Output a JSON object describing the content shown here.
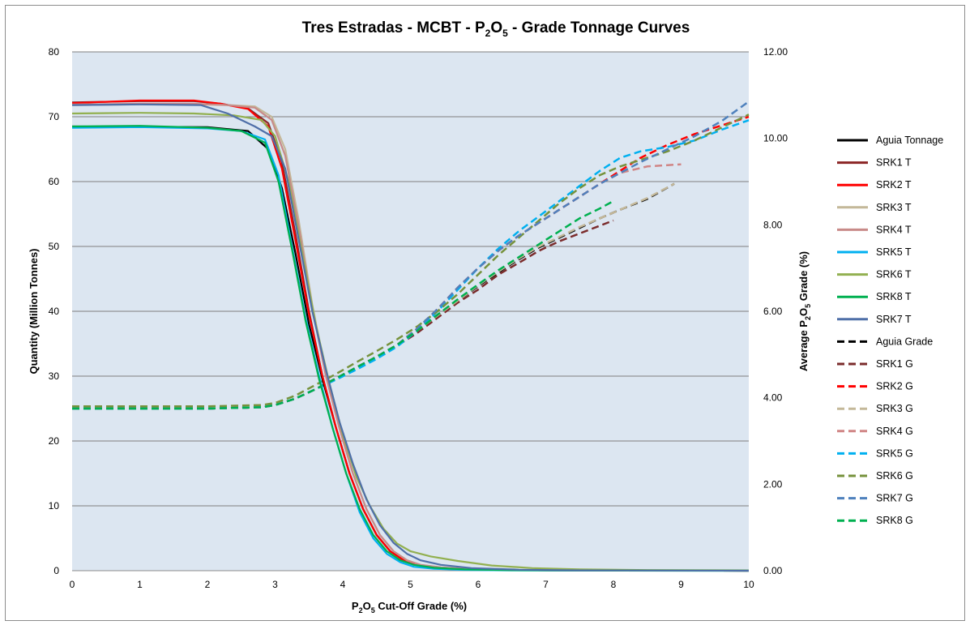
{
  "chart_data": {
    "type": "line",
    "title": {
      "prefix": "Tres Estradas - MCBT - P",
      "sub1": "2",
      "mid": "O",
      "sub2": "5",
      "suffix": " - Grade Tonnage Curves"
    },
    "xlabel": {
      "prefix": "P",
      "sub1": "2",
      "mid": "O",
      "sub2": "5",
      "suffix": " Cut-Off Grade (%)"
    },
    "ylabel": "Quantity (Million Tonnes)",
    "y2label": {
      "prefix": "Average P",
      "sub1": "2",
      "mid": "O",
      "sub2": "5",
      "suffix": " Grade (%)"
    },
    "xlim": [
      0,
      10
    ],
    "ylim": [
      0,
      80
    ],
    "y2lim": [
      0,
      12
    ],
    "x_ticks": [
      "0",
      "1",
      "2",
      "3",
      "4",
      "5",
      "6",
      "7",
      "8",
      "9",
      "10"
    ],
    "y_ticks": [
      "0",
      "10",
      "20",
      "30",
      "40",
      "50",
      "60",
      "70",
      "80"
    ],
    "y2_ticks": [
      "0.00",
      "2.00",
      "4.00",
      "6.00",
      "8.00",
      "10.00",
      "12.00"
    ],
    "grid": "horizontal",
    "legend_position": "right",
    "plot_background": "#dce6f1",
    "tonnage_series": [
      {
        "name": "Aguia Tonnage",
        "color": "#000000",
        "x": [
          0,
          2,
          2.6,
          2.9,
          3.1,
          3.3,
          3.5,
          3.7,
          3.9,
          4.1,
          4.3,
          4.5,
          4.7,
          4.9,
          5.1,
          5.4,
          5.8,
          6.5,
          7.5,
          10
        ],
        "y": [
          68.5,
          68.4,
          67.8,
          65,
          59,
          49,
          38,
          29.5,
          22,
          15,
          9.5,
          5.5,
          3,
          1.6,
          0.9,
          0.5,
          0.25,
          0.1,
          0.05,
          0
        ]
      },
      {
        "name": "SRK1 T",
        "color": "#8b2525",
        "x": [
          0,
          1,
          1.8,
          2.2,
          2.6,
          2.9,
          3.1,
          3.3,
          3.5,
          3.7,
          3.9,
          4.1,
          4.3,
          4.5,
          4.7,
          4.9,
          5.1,
          5.4,
          5.8,
          6.5,
          7.5,
          10
        ],
        "y": [
          72.2,
          72.4,
          72.4,
          72,
          71.3,
          69,
          63,
          52,
          40,
          30,
          22,
          15,
          9.5,
          5.5,
          3,
          1.6,
          0.9,
          0.5,
          0.25,
          0.1,
          0.05,
          0
        ]
      },
      {
        "name": "SRK2 T",
        "color": "#ff0000",
        "x": [
          0,
          1,
          1.8,
          2.2,
          2.6,
          2.9,
          3.1,
          3.3,
          3.5,
          3.7,
          3.9,
          4.1,
          4.3,
          4.5,
          4.7,
          4.9,
          5.1,
          5.4,
          5.8,
          6.5,
          7.5,
          10
        ],
        "y": [
          72.1,
          72.5,
          72.5,
          72,
          71.2,
          68.5,
          62,
          51,
          39.5,
          30,
          22,
          15,
          9.5,
          5.5,
          3,
          1.6,
          0.9,
          0.5,
          0.25,
          0.1,
          0.05,
          0
        ]
      },
      {
        "name": "SRK3 T",
        "color": "#c4b899",
        "x": [
          0,
          1,
          1.8,
          2.3,
          2.7,
          2.95,
          3.15,
          3.35,
          3.55,
          3.75,
          3.95,
          4.15,
          4.35,
          4.55,
          4.75,
          4.95,
          5.15,
          5.45,
          5.85,
          6.5,
          7.5,
          10
        ],
        "y": [
          71.8,
          71.9,
          71.9,
          71.8,
          71.6,
          70,
          65,
          54,
          41,
          30.5,
          22,
          15,
          9.5,
          5.5,
          3,
          1.6,
          0.9,
          0.5,
          0.25,
          0.1,
          0.05,
          0
        ]
      },
      {
        "name": "SRK4 T",
        "color": "#c88a88",
        "x": [
          0,
          1,
          1.8,
          2.3,
          2.7,
          2.95,
          3.15,
          3.35,
          3.55,
          3.75,
          3.95,
          4.15,
          4.35,
          4.55,
          4.75,
          4.95,
          5.15,
          5.45,
          5.85,
          6.5,
          7.5,
          10
        ],
        "y": [
          71.9,
          72,
          72,
          71.8,
          71.4,
          69.5,
          64,
          53,
          40.5,
          30,
          22,
          15,
          9.5,
          5.5,
          3,
          1.6,
          0.9,
          0.5,
          0.25,
          0.1,
          0.05,
          0
        ]
      },
      {
        "name": "SRK5 T",
        "color": "#00b0f0",
        "x": [
          0,
          1,
          2,
          2.5,
          2.85,
          3.05,
          3.25,
          3.45,
          3.65,
          3.85,
          4.05,
          4.25,
          4.45,
          4.65,
          4.85,
          5.05,
          5.35,
          5.8,
          6.5,
          7.5,
          10
        ],
        "y": [
          68.3,
          68.4,
          68.2,
          67.8,
          66.5,
          61,
          50,
          39,
          30,
          22,
          15,
          9,
          5,
          2.6,
          1.3,
          0.6,
          0.3,
          0.12,
          0.05,
          0.02,
          0
        ]
      },
      {
        "name": "SRK6 T",
        "color": "#92b050",
        "x": [
          0,
          1,
          1.8,
          2.4,
          2.8,
          3.0,
          3.2,
          3.4,
          3.6,
          3.8,
          4.0,
          4.2,
          4.4,
          4.6,
          4.8,
          5.0,
          5.3,
          5.7,
          6.2,
          6.8,
          7.5,
          8.5,
          10
        ],
        "y": [
          70.5,
          70.6,
          70.5,
          70.2,
          69.5,
          67,
          60,
          49,
          38,
          29,
          21,
          14.5,
          10,
          6.5,
          4.2,
          3,
          2.2,
          1.5,
          0.8,
          0.4,
          0.2,
          0.1,
          0.05
        ]
      },
      {
        "name": "SRK8 T",
        "color": "#00b050",
        "x": [
          0,
          1,
          2,
          2.5,
          2.85,
          3.05,
          3.25,
          3.45,
          3.65,
          3.85,
          4.05,
          4.25,
          4.45,
          4.65,
          4.85,
          5.05,
          5.35,
          5.8,
          6.5,
          7.5,
          10
        ],
        "y": [
          68.5,
          68.6,
          68.3,
          67.8,
          66,
          60,
          49.5,
          38.5,
          29.5,
          22,
          15,
          9.5,
          5.5,
          3,
          1.6,
          0.9,
          0.45,
          0.2,
          0.08,
          0.03,
          0
        ]
      },
      {
        "name": "SRK7 T",
        "color": "#4f6fa8",
        "x": [
          0,
          1,
          1.9,
          2.3,
          2.7,
          2.95,
          3.15,
          3.35,
          3.55,
          3.75,
          3.95,
          4.15,
          4.35,
          4.55,
          4.75,
          4.95,
          5.15,
          5.45,
          5.9,
          6.6,
          7.5,
          10
        ],
        "y": [
          71.8,
          71.9,
          71.8,
          70.5,
          68.5,
          67,
          62,
          51,
          40,
          31,
          23,
          16.5,
          11,
          7,
          4.3,
          2.6,
          1.6,
          0.9,
          0.4,
          0.15,
          0.05,
          0
        ]
      }
    ],
    "grade_series": [
      {
        "name": "Aguia Grade",
        "color": "#000000",
        "x": [
          0,
          1,
          2,
          2.8,
          3.0,
          3.3,
          3.6,
          3.9,
          4.2,
          4.5,
          4.8,
          5.1,
          5.4,
          5.7,
          6.0,
          6.3,
          6.6,
          6.9,
          7.2,
          7.5,
          7.8,
          8.1,
          8.5,
          8.9
        ],
        "y": [
          3.75,
          3.75,
          3.75,
          3.78,
          3.83,
          3.98,
          4.2,
          4.45,
          4.7,
          4.95,
          5.22,
          5.55,
          5.92,
          6.25,
          6.58,
          6.9,
          7.2,
          7.48,
          7.7,
          7.93,
          8.15,
          8.35,
          8.6,
          8.95
        ]
      },
      {
        "name": "SRK1 G",
        "color": "#7b2c2c",
        "x": [
          0,
          1,
          2,
          2.8,
          3.0,
          3.3,
          3.6,
          3.9,
          4.2,
          4.5,
          4.8,
          5.1,
          5.4,
          5.7,
          6.0,
          6.3,
          6.6,
          6.9,
          7.2,
          7.5,
          7.8,
          8.0
        ],
        "y": [
          3.75,
          3.75,
          3.75,
          3.78,
          3.83,
          3.98,
          4.2,
          4.45,
          4.7,
          4.95,
          5.2,
          5.5,
          5.85,
          6.2,
          6.5,
          6.85,
          7.12,
          7.4,
          7.62,
          7.8,
          7.98,
          8.1
        ]
      },
      {
        "name": "SRK2 G",
        "color": "#ff0000",
        "x": [
          0,
          1,
          2,
          2.8,
          3.0,
          3.3,
          3.6,
          3.9,
          4.2,
          4.5,
          4.8,
          5.1,
          5.4,
          5.7,
          6.0,
          6.3,
          6.6,
          6.9,
          7.2,
          7.5,
          7.8,
          8.1,
          8.4,
          8.8,
          9.2,
          9.6,
          10.0
        ],
        "y": [
          3.75,
          3.75,
          3.75,
          3.78,
          3.83,
          3.98,
          4.2,
          4.45,
          4.7,
          4.95,
          5.22,
          5.6,
          6.05,
          6.55,
          7.0,
          7.4,
          7.75,
          8.05,
          8.35,
          8.65,
          8.95,
          9.25,
          9.55,
          9.85,
          10.1,
          10.3,
          10.5
        ]
      },
      {
        "name": "SRK3 G",
        "color": "#c4b899",
        "x": [
          0,
          1,
          2,
          2.8,
          3.0,
          3.3,
          3.6,
          3.9,
          4.2,
          4.5,
          4.8,
          5.1,
          5.4,
          5.7,
          6.0,
          6.3,
          6.6,
          6.9,
          7.2,
          7.5,
          7.8,
          8.1,
          8.5,
          8.9
        ],
        "y": [
          3.75,
          3.75,
          3.75,
          3.78,
          3.83,
          3.98,
          4.2,
          4.45,
          4.7,
          4.95,
          5.22,
          5.55,
          5.9,
          6.25,
          6.6,
          6.92,
          7.22,
          7.5,
          7.72,
          7.95,
          8.15,
          8.35,
          8.62,
          8.95
        ]
      },
      {
        "name": "SRK4 G",
        "color": "#d08585",
        "x": [
          0,
          1,
          2,
          2.8,
          3.0,
          3.3,
          3.6,
          3.9,
          4.2,
          4.5,
          4.8,
          5.1,
          5.4,
          5.7,
          6.0,
          6.3,
          6.6,
          6.9,
          7.2,
          7.5,
          7.8,
          8.1,
          8.5,
          9.0
        ],
        "y": [
          3.75,
          3.75,
          3.75,
          3.78,
          3.83,
          3.98,
          4.2,
          4.45,
          4.7,
          4.95,
          5.22,
          5.6,
          6.05,
          6.55,
          7.0,
          7.4,
          7.75,
          8.05,
          8.35,
          8.65,
          8.95,
          9.2,
          9.35,
          9.4
        ]
      },
      {
        "name": "SRK5 G",
        "color": "#00b0f0",
        "x": [
          0,
          1,
          2,
          2.8,
          3.0,
          3.3,
          3.6,
          3.9,
          4.2,
          4.5,
          4.8,
          5.1,
          5.4,
          5.7,
          6.0,
          6.3,
          6.6,
          6.9,
          7.2,
          7.5,
          7.8,
          8.1,
          8.4,
          8.8,
          9.2,
          9.6,
          10.0
        ],
        "y": [
          3.75,
          3.75,
          3.75,
          3.78,
          3.83,
          3.98,
          4.2,
          4.42,
          4.65,
          4.9,
          5.18,
          5.55,
          6.0,
          6.5,
          7.0,
          7.45,
          7.85,
          8.2,
          8.55,
          8.9,
          9.25,
          9.55,
          9.7,
          9.8,
          9.95,
          10.2,
          10.42
        ]
      },
      {
        "name": "SRK6 G",
        "color": "#76923c",
        "x": [
          0,
          1,
          2,
          2.8,
          3.0,
          3.3,
          3.6,
          3.9,
          4.2,
          4.5,
          4.8,
          5.1,
          5.4,
          5.7,
          6.0,
          6.3,
          6.6,
          6.9,
          7.2,
          7.5,
          7.8,
          8.1,
          8.4,
          8.8,
          9.2,
          9.6,
          10.0
        ],
        "y": [
          3.8,
          3.8,
          3.8,
          3.83,
          3.88,
          4.05,
          4.3,
          4.55,
          4.82,
          5.08,
          5.35,
          5.65,
          6.0,
          6.4,
          6.85,
          7.3,
          7.7,
          8.1,
          8.5,
          8.85,
          9.15,
          9.35,
          9.5,
          9.7,
          9.95,
          10.25,
          10.55
        ]
      },
      {
        "name": "SRK7 G",
        "color": "#4f81bd",
        "x": [
          0,
          1,
          2,
          2.8,
          3.0,
          3.3,
          3.6,
          3.9,
          4.2,
          4.5,
          4.8,
          5.1,
          5.4,
          5.7,
          6.0,
          6.3,
          6.6,
          6.9,
          7.2,
          7.5,
          7.8,
          8.1,
          8.4,
          8.8,
          9.2,
          9.6,
          10.0
        ],
        "y": [
          3.75,
          3.75,
          3.75,
          3.78,
          3.83,
          3.98,
          4.2,
          4.45,
          4.7,
          4.95,
          5.22,
          5.6,
          6.05,
          6.55,
          7.0,
          7.4,
          7.75,
          8.05,
          8.35,
          8.65,
          8.95,
          9.2,
          9.45,
          9.75,
          10.05,
          10.4,
          10.85
        ]
      },
      {
        "name": "SRK8 G",
        "color": "#00b050",
        "x": [
          0,
          1,
          2,
          2.8,
          3.0,
          3.3,
          3.6,
          3.9,
          4.2,
          4.5,
          4.8,
          5.1,
          5.4,
          5.7,
          6.0,
          6.3,
          6.6,
          6.9,
          7.2,
          7.5,
          7.8,
          8.0
        ],
        "y": [
          3.75,
          3.75,
          3.75,
          3.78,
          3.83,
          3.98,
          4.2,
          4.45,
          4.7,
          4.95,
          5.22,
          5.55,
          5.92,
          6.28,
          6.62,
          6.95,
          7.25,
          7.55,
          7.85,
          8.15,
          8.38,
          8.55
        ]
      }
    ]
  }
}
